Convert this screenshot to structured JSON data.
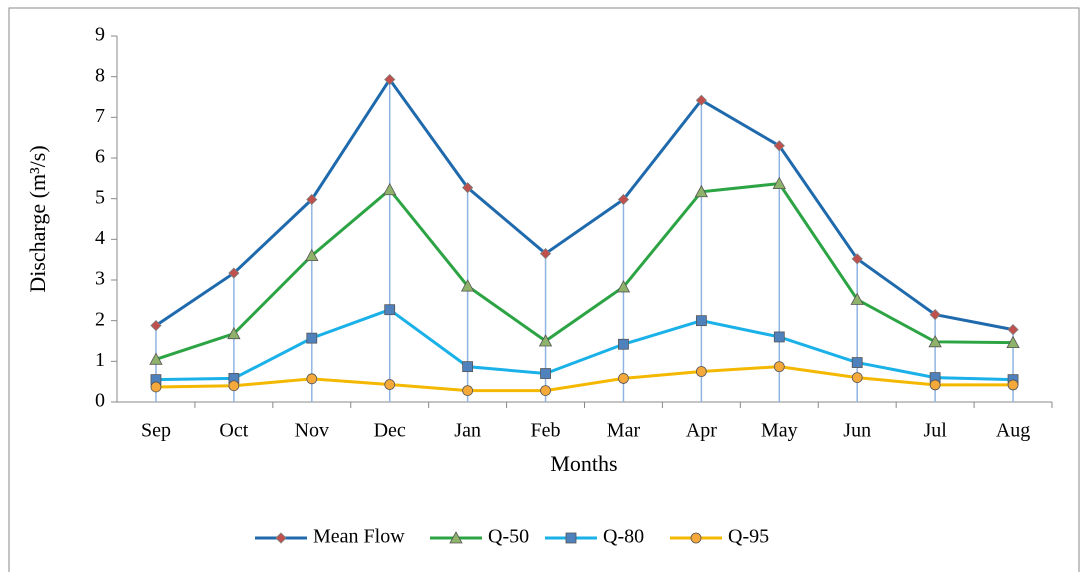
{
  "chart_data": {
    "type": "line",
    "x_label": "Months",
    "y_label": "Discharge (m³/s)",
    "categories": [
      "Sep",
      "Oct",
      "Nov",
      "Dec",
      "Jan",
      "Feb",
      "Mar",
      "Apr",
      "May",
      "Jun",
      "Jul",
      "Aug"
    ],
    "series": [
      {
        "name": "Mean Flow",
        "color": "#1f6aad",
        "marker": "diamond",
        "marker_color": "#c0504d",
        "values": [
          1.88,
          3.17,
          4.98,
          7.93,
          5.27,
          3.65,
          4.98,
          7.42,
          6.3,
          3.52,
          2.15,
          1.78
        ]
      },
      {
        "name": "Q-50",
        "color": "#2ca444",
        "marker": "triangle",
        "marker_color": "#8fb26a",
        "values": [
          1.05,
          1.68,
          3.6,
          5.22,
          2.85,
          1.5,
          2.83,
          5.17,
          5.37,
          2.52,
          1.48,
          1.46
        ]
      },
      {
        "name": "Q-80",
        "color": "#1ab0e8",
        "marker": "square",
        "marker_color": "#4f81bd",
        "values": [
          0.55,
          0.58,
          1.57,
          2.27,
          0.87,
          0.7,
          1.42,
          2.0,
          1.6,
          0.97,
          0.6,
          0.55
        ]
      },
      {
        "name": "Q-95",
        "color": "#f5b800",
        "marker": "circle",
        "marker_color": "#f4a93a",
        "values": [
          0.37,
          0.4,
          0.57,
          0.43,
          0.28,
          0.28,
          0.58,
          0.75,
          0.87,
          0.6,
          0.42,
          0.42
        ]
      }
    ],
    "ylim": [
      0,
      9
    ],
    "yticks": [
      0,
      1,
      2,
      3,
      4,
      5,
      6,
      7,
      8,
      9
    ],
    "drop_lines": true,
    "drop_line_color": "#8fb4e3",
    "legend": "bottom"
  }
}
